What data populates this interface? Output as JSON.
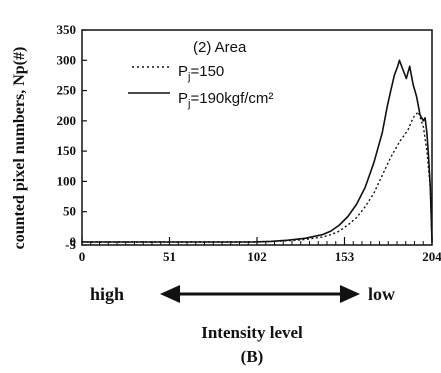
{
  "chart_data": {
    "type": "line",
    "annotation": "(2)  Area",
    "ylabel": "counted pixel numbers, Np(#)",
    "xlabel": "Intensity level",
    "caption": "(B)",
    "direction": {
      "left": "high",
      "right": "low"
    },
    "xlim": [
      0,
      204
    ],
    "ylim": [
      -5,
      350
    ],
    "x_ticks": [
      0,
      51,
      102,
      153,
      204
    ],
    "y_ticks": [
      350,
      300,
      250,
      200,
      150,
      100,
      50,
      0,
      -5
    ],
    "series": [
      {
        "name": "Pj=150",
        "legend_prefix": "P",
        "legend_sub": "j",
        "legend_suffix": "=150",
        "style": "dotted",
        "points": [
          [
            0,
            0
          ],
          [
            100,
            0
          ],
          [
            110,
            1
          ],
          [
            120,
            2
          ],
          [
            130,
            4
          ],
          [
            140,
            8
          ],
          [
            145,
            12
          ],
          [
            150,
            18
          ],
          [
            155,
            28
          ],
          [
            160,
            40
          ],
          [
            165,
            58
          ],
          [
            170,
            80
          ],
          [
            175,
            110
          ],
          [
            180,
            140
          ],
          [
            185,
            165
          ],
          [
            190,
            185
          ],
          [
            193,
            205
          ],
          [
            196,
            215
          ],
          [
            199,
            190
          ],
          [
            201,
            150
          ],
          [
            203,
            90
          ],
          [
            204,
            0
          ]
        ]
      },
      {
        "name": "Pj=190kgf/cm²",
        "legend_prefix": "P",
        "legend_sub": "j",
        "legend_suffix": "=190kgf/cm²",
        "style": "solid",
        "points": [
          [
            0,
            0
          ],
          [
            100,
            0
          ],
          [
            110,
            1
          ],
          [
            120,
            3
          ],
          [
            130,
            6
          ],
          [
            140,
            12
          ],
          [
            145,
            18
          ],
          [
            150,
            28
          ],
          [
            155,
            42
          ],
          [
            160,
            62
          ],
          [
            165,
            90
          ],
          [
            170,
            130
          ],
          [
            175,
            180
          ],
          [
            178,
            225
          ],
          [
            180,
            250
          ],
          [
            182,
            275
          ],
          [
            184,
            290
          ],
          [
            185,
            300
          ],
          [
            187,
            285
          ],
          [
            189,
            270
          ],
          [
            191,
            290
          ],
          [
            193,
            260
          ],
          [
            195,
            240
          ],
          [
            197,
            210
          ],
          [
            199,
            200
          ],
          [
            200,
            205
          ],
          [
            201,
            180
          ],
          [
            202,
            140
          ],
          [
            203,
            90
          ],
          [
            204,
            0
          ]
        ]
      }
    ]
  }
}
